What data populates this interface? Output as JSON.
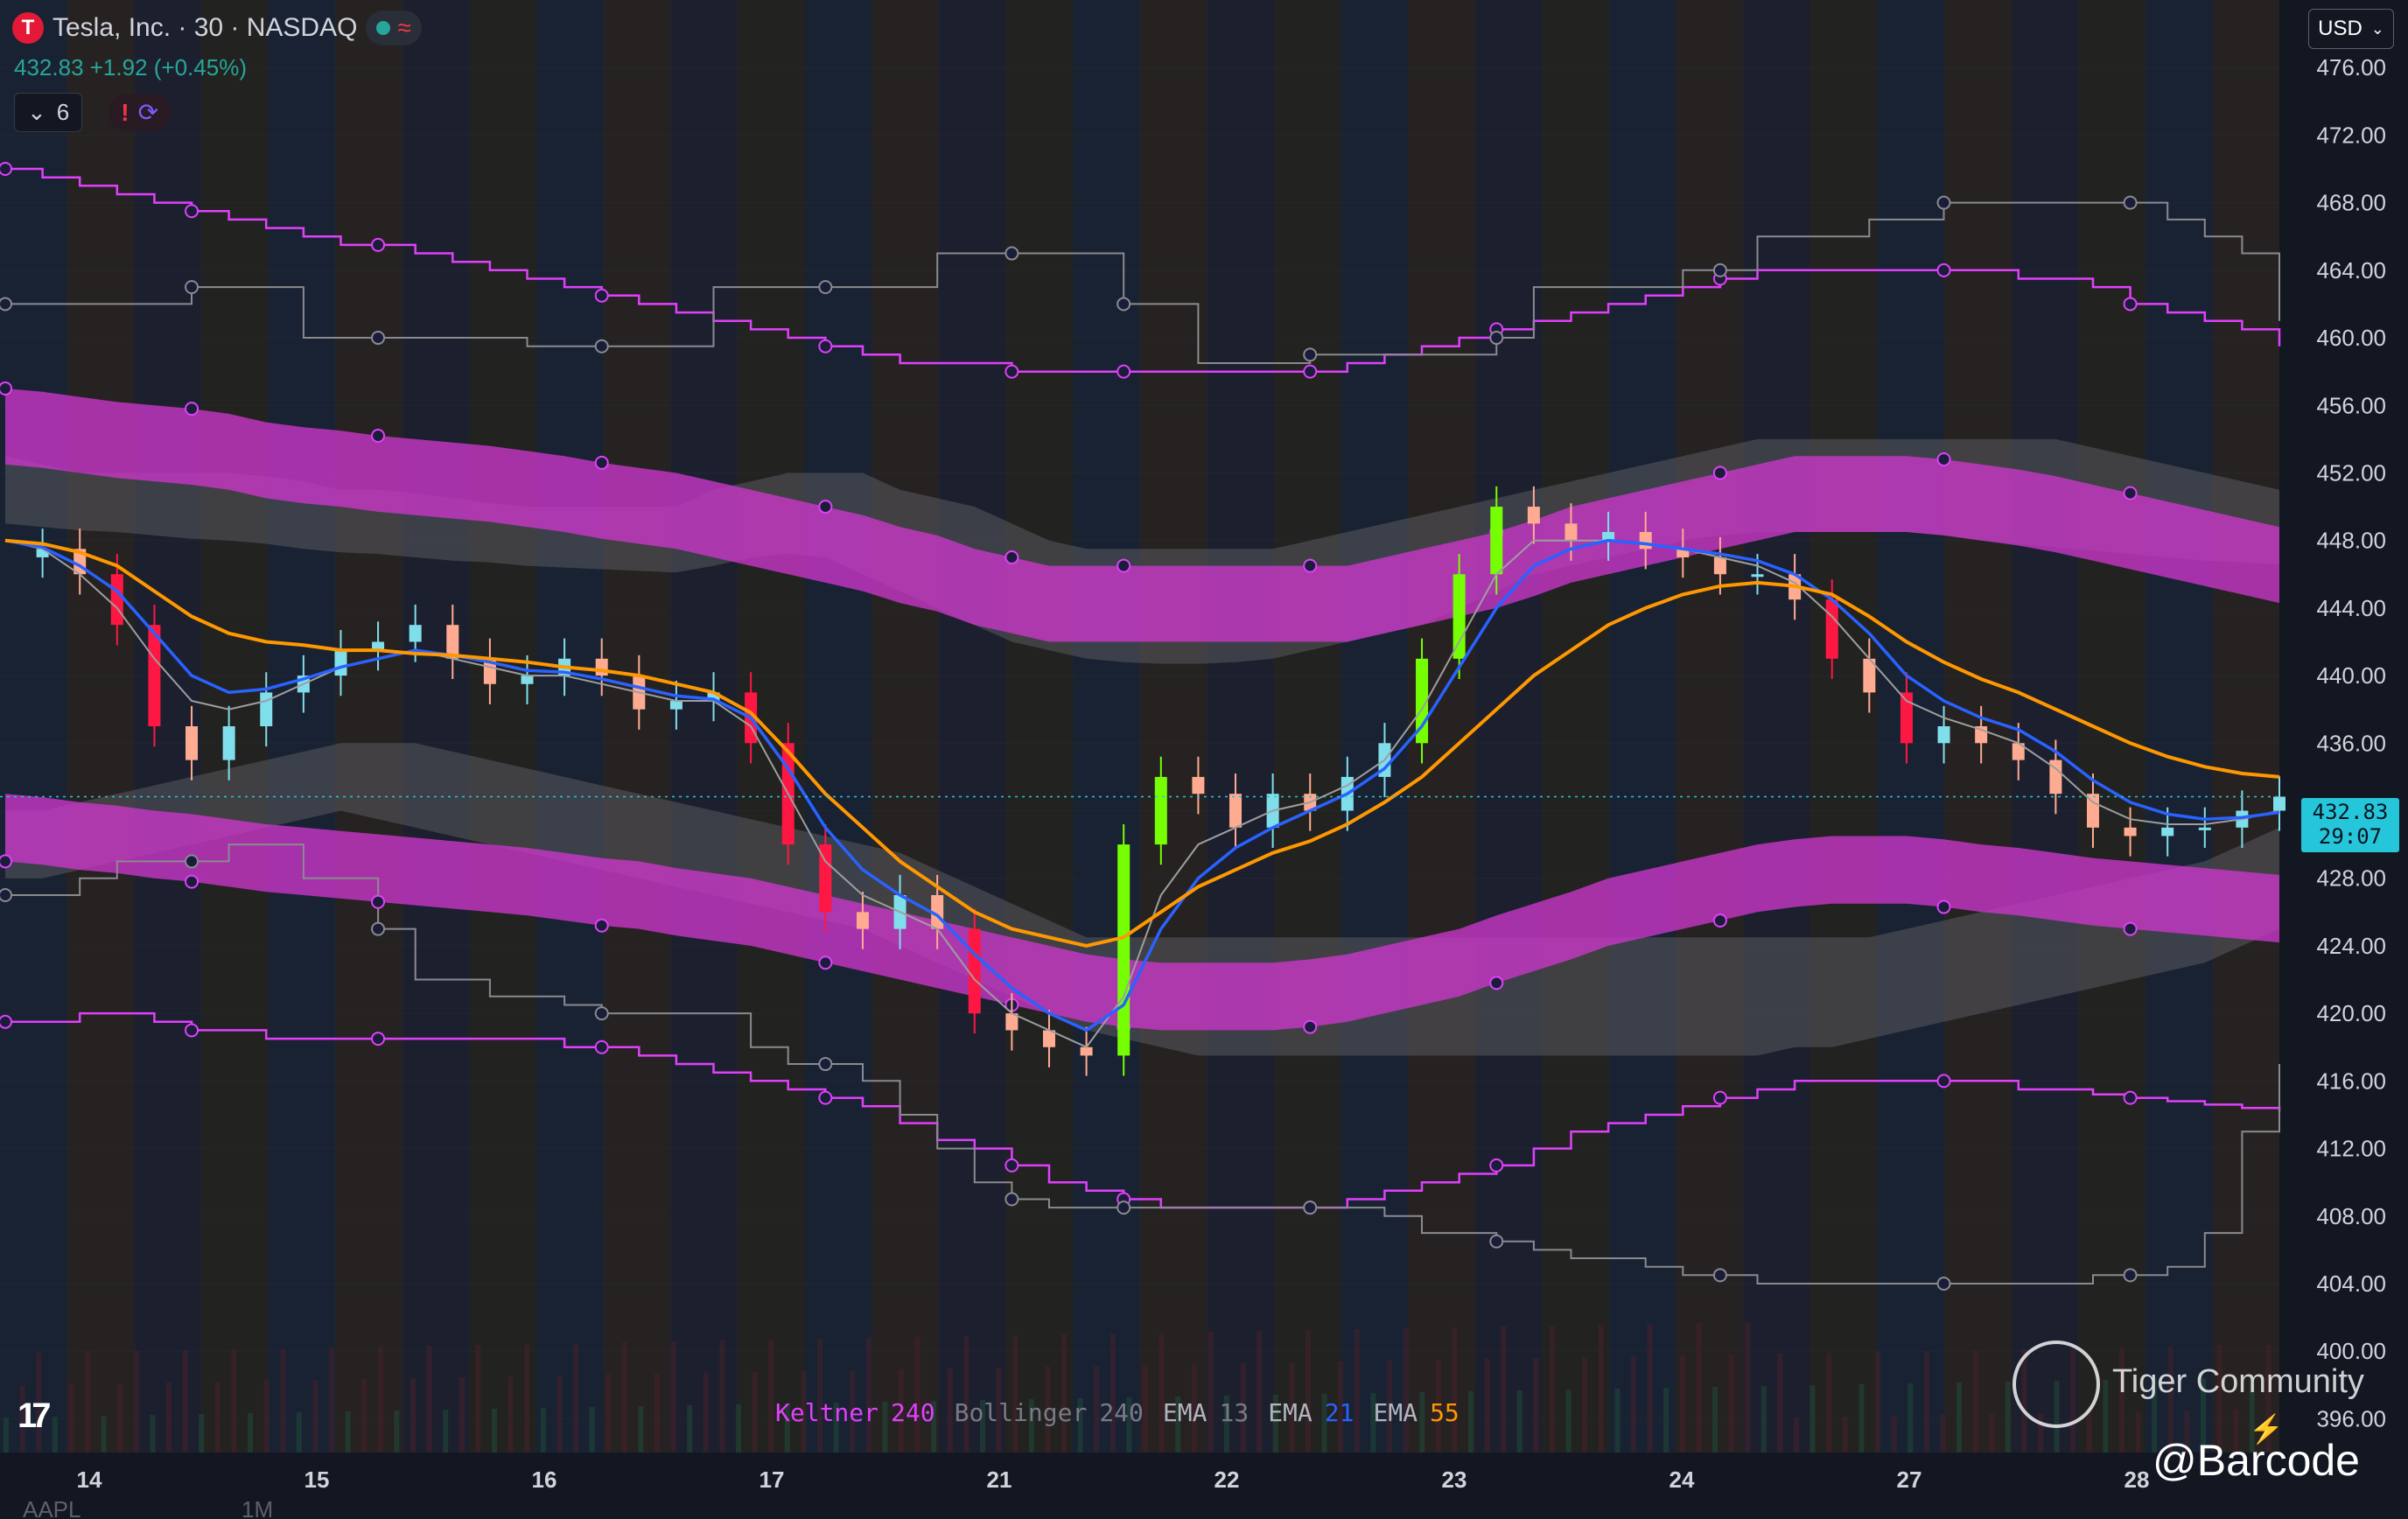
{
  "header": {
    "logo_letter": "T",
    "symbol_title": "Tesla, Inc. · 30 · NASDAQ",
    "status_glyph": "≈",
    "price_line": "432.83 +1.92 (+0.45%)",
    "indicator_count": "6",
    "alert_glyph": "!",
    "sync_glyph": "⟳"
  },
  "currency": "USD",
  "price_tag": {
    "price": "432.83",
    "countdown": "29:07"
  },
  "legend": [
    {
      "text": "Keltner",
      "color": "#e040fb"
    },
    {
      "text": "240",
      "color": "#e040fb"
    },
    {
      "text": "Bollinger",
      "color": "#787b86"
    },
    {
      "text": "240",
      "color": "#787b86"
    },
    {
      "text": "EMA",
      "color": "#b2b5be"
    },
    {
      "text": "13",
      "color": "#787b86"
    },
    {
      "text": "EMA",
      "color": "#b2b5be"
    },
    {
      "text": "21",
      "color": "#2962ff"
    },
    {
      "text": "EMA",
      "color": "#b2b5be"
    },
    {
      "text": "55",
      "color": "#ff9800"
    }
  ],
  "watermark": {
    "text": "Tiger Community",
    "handle": "@Barcode",
    "spark": "⚡"
  },
  "bottom_tabs": [
    "AAPL",
    "1M"
  ],
  "chart_data": {
    "type": "candlestick",
    "ylim": [
      394,
      480
    ],
    "y_ticks": [
      "476.00",
      "472.00",
      "468.00",
      "464.00",
      "460.00",
      "456.00",
      "452.00",
      "448.00",
      "444.00",
      "440.00",
      "436.00",
      "432.00",
      "428.00",
      "424.00",
      "420.00",
      "416.00",
      "412.00",
      "408.00",
      "404.00",
      "400.00",
      "396.00"
    ],
    "x_labels": [
      "14",
      "15",
      "16",
      "17",
      "21",
      "22",
      "23",
      "24",
      "27",
      "28"
    ],
    "last_price": 432.83,
    "price_series": [
      447,
      447.5,
      446,
      443,
      437,
      435,
      437,
      439,
      440,
      441.5,
      442,
      443,
      441,
      439.5,
      440,
      441,
      440,
      438,
      438.5,
      439,
      436,
      430,
      426,
      425,
      427,
      425,
      420,
      419,
      418,
      417.5,
      430,
      434,
      433,
      431,
      433,
      432,
      434,
      436,
      441,
      446,
      450,
      449,
      448,
      448.5,
      447.5,
      447,
      446,
      446,
      444.5,
      441,
      439,
      436,
      437,
      436,
      435,
      433,
      431,
      430.5,
      431,
      431,
      432,
      432.83
    ],
    "ema13": [
      448,
      447.5,
      446,
      444,
      441,
      438.5,
      438,
      438.5,
      439.5,
      440.5,
      441,
      441.5,
      441,
      440.5,
      440,
      440,
      439.5,
      439,
      438.5,
      438.5,
      437,
      433,
      429,
      427,
      426,
      425,
      422,
      420,
      419,
      418,
      421,
      427,
      430,
      431,
      432,
      432.5,
      433.5,
      435,
      438,
      442,
      446,
      448,
      448,
      448,
      447.8,
      447.5,
      447,
      446.5,
      445.5,
      443.5,
      441,
      438.5,
      437.5,
      436.8,
      436,
      434.5,
      432.5,
      431.5,
      431.2,
      431.2,
      431.5,
      432
    ],
    "ema21": [
      448,
      447.6,
      446.5,
      445,
      442.5,
      440,
      439,
      439.2,
      439.8,
      440.5,
      441,
      441.5,
      441.2,
      440.8,
      440.3,
      440.2,
      439.8,
      439.3,
      438.8,
      438.6,
      437.5,
      434.5,
      431,
      428.5,
      427,
      425.8,
      423.5,
      421.5,
      420,
      419,
      420.5,
      425,
      428,
      429.8,
      431,
      432,
      433,
      434.5,
      437,
      440.5,
      444,
      446.5,
      447.5,
      448,
      447.8,
      447.5,
      447.2,
      446.8,
      446,
      444.5,
      442.5,
      440,
      438.5,
      437.5,
      436.8,
      435.5,
      433.8,
      432.5,
      431.8,
      431.5,
      431.6,
      431.9
    ],
    "ema55": [
      448,
      447.8,
      447.3,
      446.5,
      445,
      443.5,
      442.5,
      442,
      441.8,
      441.5,
      441.5,
      441.3,
      441.2,
      441,
      440.8,
      440.5,
      440.3,
      440,
      439.5,
      439,
      437.8,
      435.5,
      433,
      431,
      429,
      427.5,
      426,
      425,
      424.5,
      424,
      424.5,
      426,
      427.5,
      428.5,
      429.5,
      430.2,
      431.2,
      432.5,
      434,
      436,
      438,
      440,
      441.5,
      443,
      444,
      444.8,
      445.3,
      445.5,
      445.3,
      444.8,
      443.5,
      442,
      440.8,
      439.8,
      439,
      438,
      437,
      436,
      435.2,
      434.6,
      434.2,
      434
    ],
    "keltner_upper": [
      470,
      469.5,
      469,
      468.5,
      468,
      467.5,
      467,
      466.5,
      466,
      465.5,
      465.5,
      465,
      464.5,
      464,
      463.5,
      463,
      462.5,
      462,
      461.5,
      461,
      460.5,
      460,
      459.5,
      459,
      458.5,
      458.5,
      458.5,
      458,
      458,
      458,
      458,
      458,
      458,
      458,
      458,
      458,
      458.5,
      459,
      459.5,
      460,
      460.5,
      461,
      461.5,
      462,
      462.5,
      463,
      463.5,
      464,
      464,
      464,
      464,
      464,
      464,
      464,
      463.5,
      463.5,
      463,
      462,
      461.5,
      461,
      460.5,
      459.5
    ],
    "keltner_lower": [
      419.5,
      419.5,
      420,
      420,
      419.5,
      419,
      419,
      418.5,
      418.5,
      418.5,
      418.5,
      418.5,
      418.5,
      418.5,
      418.5,
      418,
      418,
      417.5,
      417,
      416.5,
      416,
      415.5,
      415,
      414.5,
      413.5,
      412.5,
      412,
      411,
      410,
      409.5,
      409,
      408.5,
      408.5,
      408.5,
      408.5,
      408.5,
      409,
      409.5,
      410,
      410.5,
      411,
      412,
      413,
      413.5,
      414,
      414.5,
      415,
      415.5,
      416,
      416,
      416,
      416,
      416,
      416,
      415.5,
      415.5,
      415.2,
      415,
      414.8,
      414.6,
      414.4,
      414.2
    ],
    "keltner_band_hi": [
      457,
      456.8,
      456.5,
      456.2,
      456,
      455.8,
      455.5,
      455,
      454.7,
      454.5,
      454.2,
      454,
      453.8,
      453.6,
      453.3,
      453,
      452.6,
      452.3,
      452,
      451.5,
      451,
      450.5,
      450,
      449.5,
      448.8,
      448.3,
      447.5,
      447,
      446.5,
      446.5,
      446.5,
      446.5,
      446.5,
      446.5,
      446.5,
      446.5,
      446.5,
      447,
      447.5,
      448,
      448.5,
      449.2,
      450,
      450.5,
      451,
      451.5,
      452,
      452.5,
      453,
      453,
      453,
      453,
      452.8,
      452.5,
      452.2,
      451.8,
      451.3,
      450.8,
      450.3,
      449.8,
      449.3,
      448.8
    ],
    "keltner_band_lo": [
      452.5,
      452.3,
      452,
      451.7,
      451.5,
      451.3,
      451,
      450.5,
      450.2,
      450,
      449.7,
      449.5,
      449.3,
      449.1,
      448.8,
      448.5,
      448.1,
      447.8,
      447.5,
      447,
      446.5,
      446,
      445.5,
      445,
      444.3,
      443.8,
      443,
      442.5,
      442,
      442,
      442,
      442,
      442,
      442,
      442,
      442,
      442,
      442.5,
      443,
      443.5,
      444,
      444.7,
      445.5,
      446,
      446.5,
      447,
      447.5,
      448,
      448.5,
      448.5,
      448.5,
      448.5,
      448.3,
      448,
      447.7,
      447.3,
      446.8,
      446.3,
      445.8,
      445.3,
      444.8,
      444.3
    ],
    "keltner_lower_band_hi": [
      433,
      432.8,
      432.5,
      432.3,
      432,
      431.8,
      431.5,
      431.2,
      431,
      430.8,
      430.6,
      430.4,
      430.2,
      430,
      429.8,
      429.5,
      429.2,
      429,
      428.6,
      428.3,
      428,
      427.5,
      427,
      426.5,
      426,
      425.5,
      425,
      424.5,
      424,
      423.5,
      423.2,
      423,
      423,
      423,
      423,
      423.2,
      423.5,
      424,
      424.5,
      425,
      425.8,
      426.5,
      427.2,
      428,
      428.5,
      429,
      429.5,
      430,
      430.3,
      430.5,
      430.5,
      430.5,
      430.3,
      430,
      429.8,
      429.5,
      429.2,
      429,
      428.8,
      428.6,
      428.4,
      428.2
    ],
    "keltner_lower_band_lo": [
      429,
      428.8,
      428.5,
      428.3,
      428,
      427.8,
      427.5,
      427.2,
      427,
      426.8,
      426.6,
      426.4,
      426.2,
      426,
      425.8,
      425.5,
      425.2,
      425,
      424.6,
      424.3,
      424,
      423.5,
      423,
      422.5,
      422,
      421.5,
      421,
      420.5,
      420,
      419.5,
      419.2,
      419,
      419,
      419,
      419,
      419.2,
      419.5,
      420,
      420.5,
      421,
      421.8,
      422.5,
      423.2,
      424,
      424.5,
      425,
      425.5,
      426,
      426.3,
      426.5,
      426.5,
      426.5,
      426.3,
      426,
      425.8,
      425.5,
      425.2,
      425,
      424.8,
      424.6,
      424.4,
      424.2
    ],
    "bollinger_upper": [
      462,
      462,
      462,
      462,
      462,
      463,
      463,
      463,
      460,
      460,
      460,
      460,
      460,
      460,
      459.5,
      459.5,
      459.5,
      459.5,
      459.5,
      463,
      463,
      463,
      463,
      463,
      463,
      465,
      465,
      465,
      465,
      465,
      462,
      462,
      458.5,
      458.5,
      458.5,
      459,
      459,
      459,
      459,
      459,
      460,
      463,
      463,
      463,
      463,
      464,
      464,
      466,
      466,
      466,
      467,
      467,
      468,
      468,
      468,
      468,
      468,
      468,
      467,
      466,
      465,
      461
    ],
    "bollinger_lower": [
      427,
      427,
      428,
      429,
      429,
      429,
      430,
      430,
      428,
      428,
      425,
      422,
      422,
      421,
      421,
      420.5,
      420,
      420,
      420,
      420,
      418,
      417,
      417,
      416,
      414,
      412,
      410,
      409,
      408.5,
      408.5,
      408.5,
      408.5,
      408.5,
      408.5,
      408.5,
      408.5,
      408.5,
      408,
      407,
      407,
      406.5,
      406,
      405.5,
      405.5,
      405,
      404.5,
      404.5,
      404,
      404,
      404,
      404,
      404,
      404,
      404,
      404,
      404,
      404.5,
      404.5,
      405,
      407,
      413,
      417
    ],
    "bollinger_band_hi": [
      453,
      452.5,
      452,
      452,
      452,
      452,
      452,
      451.8,
      451.5,
      451,
      451,
      450.8,
      450.5,
      450.2,
      450,
      450,
      450,
      450,
      450,
      451,
      451.5,
      452,
      452,
      452,
      451,
      450.5,
      450,
      449,
      448,
      447.5,
      447.5,
      447.5,
      447.5,
      447.5,
      447.5,
      448,
      448.5,
      449,
      449.5,
      450,
      450.5,
      451,
      451.5,
      452,
      452.5,
      453,
      453.5,
      454,
      454,
      454,
      454,
      454,
      454,
      454,
      454,
      454,
      453.5,
      453,
      452.5,
      452,
      451.5,
      451
    ],
    "bollinger_band_lo": [
      449,
      448.8,
      448.6,
      448.5,
      448.3,
      448.1,
      448,
      447.8,
      447.5,
      447.3,
      447.2,
      447,
      446.8,
      446.7,
      446.5,
      446.4,
      446.3,
      446.2,
      446.1,
      446.5,
      447,
      447.2,
      447,
      446,
      445,
      444,
      443,
      442,
      441.5,
      441,
      440.8,
      440.7,
      440.7,
      440.8,
      441,
      441.5,
      442,
      442.5,
      443,
      444,
      445,
      446,
      446.5,
      447,
      447.5,
      448,
      448.3,
      448.5,
      448.5,
      448.5,
      448.5,
      448.5,
      448.3,
      448,
      447.8,
      447.6,
      447.4,
      447.2,
      447,
      446.8,
      446.7,
      446.6
    ],
    "bollinger_lower_band_hi": [
      432,
      432,
      432.5,
      433,
      433.5,
      434,
      434.5,
      435,
      435.5,
      436,
      436,
      436,
      435.5,
      435,
      434.5,
      434,
      433.5,
      433,
      432.5,
      432,
      431.5,
      431,
      430.5,
      430,
      429.5,
      428.5,
      427.5,
      426.5,
      425.5,
      424.5,
      424.5,
      424.5,
      424.5,
      424.5,
      424.5,
      424.5,
      424.5,
      424.5,
      424.5,
      424.5,
      424.5,
      424.5,
      424.5,
      424.5,
      424.5,
      424.5,
      424.5,
      424.5,
      424.5,
      424.5,
      424.5,
      425,
      425.5,
      426,
      426.5,
      427,
      427.5,
      428,
      428.5,
      429,
      430,
      431
    ],
    "bollinger_lower_band_lo": [
      428,
      428,
      428.5,
      429,
      429.5,
      430,
      430.5,
      431,
      431.5,
      432,
      431.5,
      431,
      430.5,
      430,
      429.5,
      429,
      428.5,
      428,
      427.5,
      427,
      426.5,
      426,
      425.5,
      425,
      424,
      423,
      422,
      421,
      420,
      419,
      418.5,
      418,
      417.5,
      417.5,
      417.5,
      417.5,
      417.5,
      417.5,
      417.5,
      417.5,
      417.5,
      417.5,
      417.5,
      417.5,
      417.5,
      417.5,
      417.5,
      417.5,
      418,
      418,
      418.5,
      419,
      419.5,
      420,
      420.5,
      421,
      421.5,
      422,
      422.5,
      423,
      424,
      425
    ]
  }
}
